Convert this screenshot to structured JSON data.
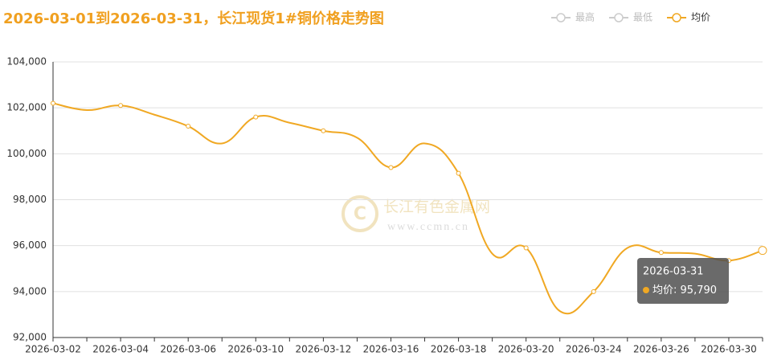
{
  "chart_data": {
    "type": "line",
    "title": "2026-03-01到2026-03-31，长江现货1#铜价格走势图",
    "watermark": {
      "name": "长江有色金属网",
      "url": "www.ccmn.cn"
    },
    "categories": [
      "2026-03-02",
      null,
      "2026-03-04",
      null,
      "2026-03-06",
      null,
      "2026-03-10",
      null,
      "2026-03-12",
      null,
      "2026-03-16",
      null,
      "2026-03-18",
      null,
      "2026-03-20",
      null,
      "2026-03-24",
      null,
      "2026-03-26",
      null,
      "2026-03-30",
      "2026-03-31"
    ],
    "series": [
      {
        "name": "最高",
        "color": "#cccccc",
        "visible": false
      },
      {
        "name": "最低",
        "color": "#cccccc",
        "visible": false
      },
      {
        "name": "均价",
        "color": "#f0a823",
        "visible": true,
        "values": [
          102200,
          101900,
          102100,
          101700,
          101200,
          100450,
          101600,
          101350,
          101000,
          100700,
          99400,
          100450,
          99150,
          95650,
          95900,
          93150,
          94000,
          95900,
          95700,
          95650,
          95350,
          95790
        ],
        "value_labels": [
          null,
          null,
          null,
          null,
          null,
          null,
          null,
          null,
          null,
          null,
          null,
          null,
          null,
          null,
          null,
          null,
          null,
          null,
          null,
          null,
          null,
          "95,790"
        ]
      }
    ],
    "ylim": [
      92000,
      104000
    ],
    "yticks": [
      {
        "value": 92000,
        "label": "92,000"
      },
      {
        "value": 94000,
        "label": "94,000"
      },
      {
        "value": 96000,
        "label": "96,000"
      },
      {
        "value": 98000,
        "label": "98,000"
      },
      {
        "value": 100000,
        "label": "100,000"
      },
      {
        "value": 102000,
        "label": "102,000"
      },
      {
        "value": 104000,
        "label": "104,000"
      }
    ],
    "grid": true,
    "legend": "top-right",
    "tooltip_index": 21
  }
}
